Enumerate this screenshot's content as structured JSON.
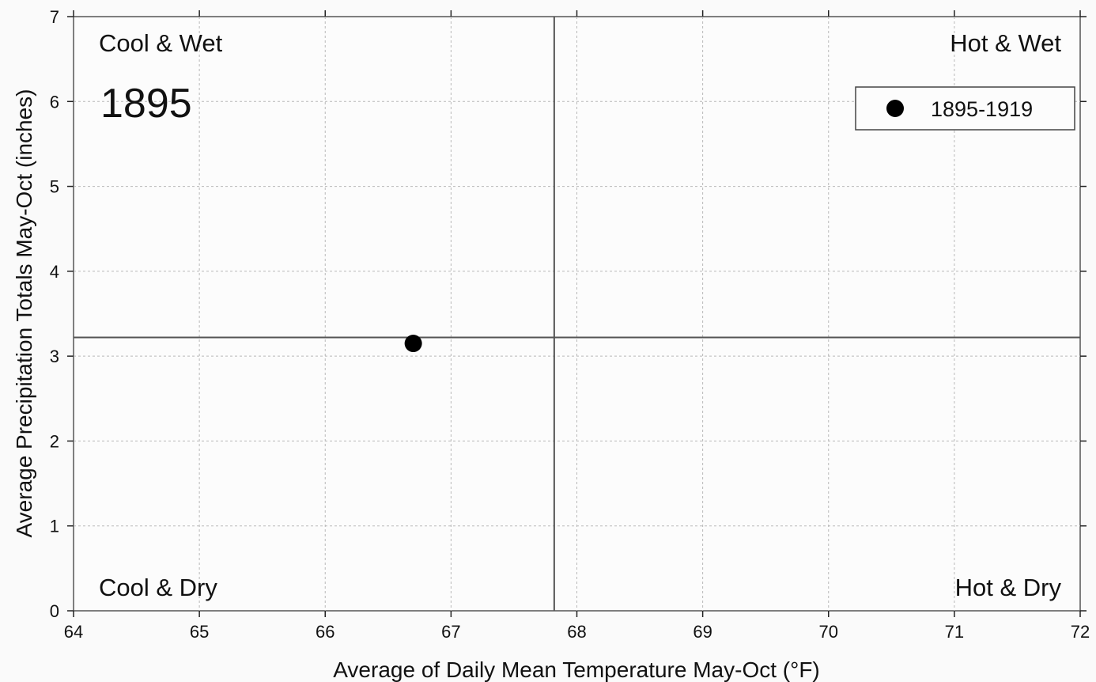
{
  "chart_data": {
    "type": "scatter",
    "title": "",
    "xlabel": "Average of Daily Mean Temperature May-Oct (°F)",
    "ylabel": "Average Precipitation Totals May-Oct (inches)",
    "xlim": [
      64,
      72
    ],
    "ylim": [
      0,
      7
    ],
    "x_ticks": [
      64,
      65,
      66,
      67,
      68,
      69,
      70,
      71,
      72
    ],
    "y_ticks": [
      0,
      1,
      2,
      3,
      4,
      5,
      6,
      7
    ],
    "grid": true,
    "reference_lines": {
      "x": 67.82,
      "y": 3.22
    },
    "quadrant_labels": {
      "top_left": "Cool & Wet",
      "top_right": "Hot & Wet",
      "bottom_left": "Cool & Dry",
      "bottom_right": "Hot & Dry"
    },
    "annotation": "1895",
    "legend": {
      "position": "top-right"
    },
    "series": [
      {
        "name": "1895-1919",
        "marker": "filled-circle",
        "color": "#000000",
        "points": [
          {
            "x": 66.7,
            "y": 3.15
          }
        ]
      }
    ]
  }
}
